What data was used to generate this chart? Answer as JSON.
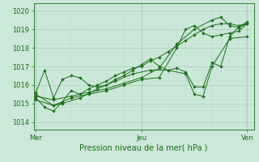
{
  "xlabel": "Pression niveau de la mer( hPa )",
  "yticks": [
    1014,
    1015,
    1016,
    1017,
    1018,
    1019,
    1020
  ],
  "xtick_labels": [
    "Mer",
    "Jeu",
    "Ven"
  ],
  "xtick_positions": [
    0,
    48,
    96
  ],
  "xlim": [
    -1,
    99
  ],
  "ylim": [
    1013.6,
    1020.4
  ],
  "bg_color": "#cce8d8",
  "line_color": "#1a6e1a",
  "grid_major_color": "#aacfbc",
  "grid_minor_color": "#bbdcca",
  "series": [
    [
      0,
      1015.3,
      4,
      1014.8,
      8,
      1014.6,
      12,
      1015.1,
      16,
      1015.7,
      20,
      1015.5,
      24,
      1015.8,
      28,
      1016.0,
      32,
      1016.2,
      36,
      1016.5,
      40,
      1016.7,
      44,
      1016.9,
      48,
      1017.0,
      52,
      1017.3,
      56,
      1017.5,
      60,
      1017.8,
      64,
      1018.1,
      68,
      1018.4,
      72,
      1018.7,
      76,
      1019.0,
      80,
      1019.2,
      84,
      1019.3,
      88,
      1019.3,
      92,
      1019.2,
      96,
      1019.3
    ],
    [
      0,
      1015.5,
      8,
      1014.9,
      12,
      1015.0,
      20,
      1015.3,
      28,
      1015.8,
      36,
      1016.2,
      44,
      1016.6,
      52,
      1016.8,
      60,
      1016.8,
      68,
      1016.6,
      72,
      1015.5,
      76,
      1015.4,
      80,
      1017.0,
      88,
      1018.5,
      96,
      1018.6
    ],
    [
      0,
      1015.4,
      8,
      1015.2,
      16,
      1015.4,
      24,
      1015.6,
      32,
      1015.8,
      40,
      1016.1,
      48,
      1016.4,
      56,
      1016.9,
      64,
      1018.2,
      72,
      1019.0,
      80,
      1019.5,
      84,
      1019.65,
      88,
      1019.2,
      92,
      1019.1,
      96,
      1019.3
    ],
    [
      0,
      1015.2,
      8,
      1014.9,
      16,
      1015.3,
      24,
      1015.5,
      32,
      1015.7,
      40,
      1016.0,
      48,
      1016.3,
      56,
      1016.4,
      64,
      1018.0,
      68,
      1019.0,
      72,
      1019.2,
      76,
      1018.8,
      80,
      1018.6,
      84,
      1018.7,
      88,
      1018.8,
      92,
      1018.9,
      96,
      1019.3
    ],
    [
      0,
      1015.6,
      4,
      1016.8,
      8,
      1015.3,
      12,
      1016.3,
      16,
      1016.5,
      20,
      1016.4,
      24,
      1016.0,
      28,
      1015.9,
      32,
      1016.0,
      36,
      1016.3,
      40,
      1016.5,
      44,
      1016.8,
      48,
      1017.1,
      52,
      1017.4,
      56,
      1017.0,
      60,
      1016.8,
      64,
      1016.9,
      68,
      1016.7,
      72,
      1015.9,
      76,
      1015.9,
      80,
      1017.2,
      84,
      1017.0,
      88,
      1018.6,
      92,
      1019.1,
      96,
      1019.4
    ]
  ]
}
